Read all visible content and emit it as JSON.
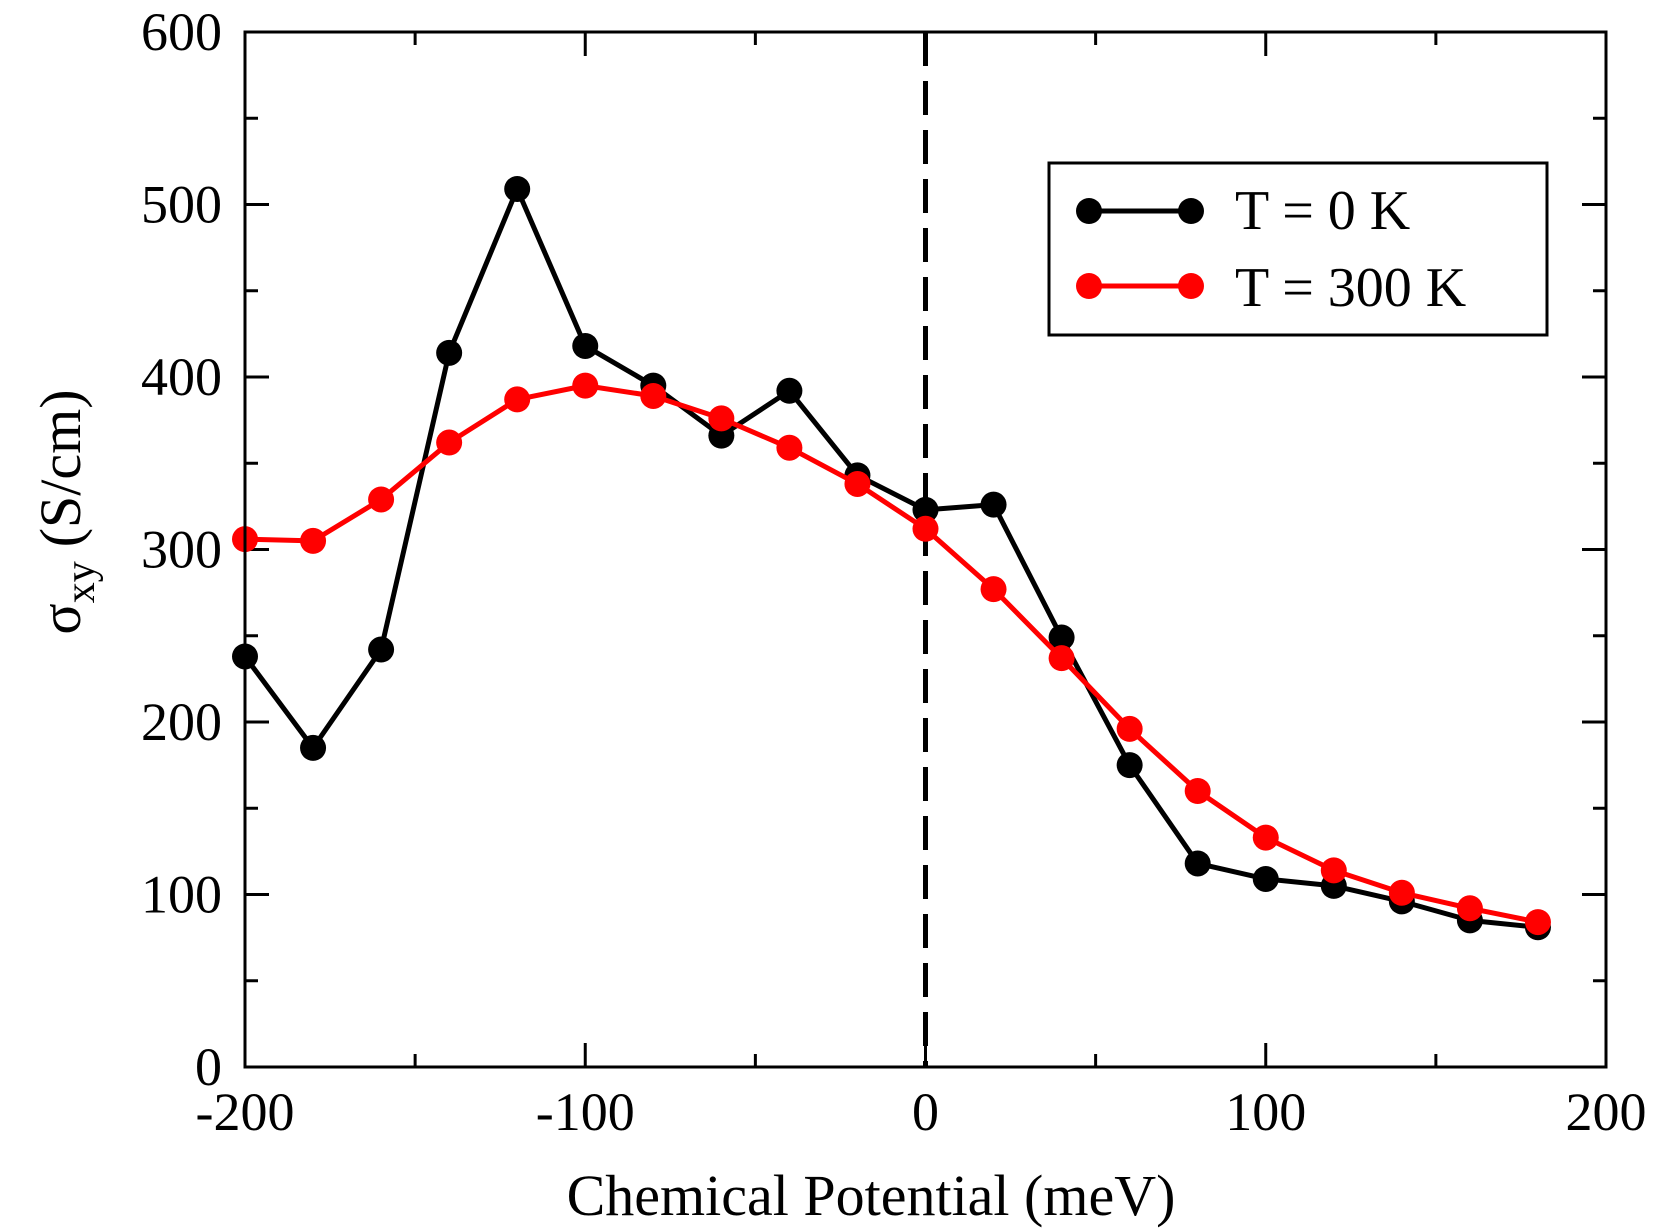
{
  "chart_data": {
    "type": "line",
    "title": "",
    "xlabel": "Chemical Potential (meV)",
    "ylabel_symbol": "σ",
    "ylabel_subscript": "xy",
    "ylabel_unit": "(S/cm)",
    "xlim": [
      -200,
      200
    ],
    "ylim": [
      0,
      600
    ],
    "x_ticks": [
      -200,
      -100,
      0,
      100,
      200
    ],
    "x_tick_labels": [
      "-200",
      "-100",
      "0",
      "100",
      "200"
    ],
    "y_ticks": [
      0,
      100,
      200,
      300,
      400,
      500,
      600
    ],
    "y_tick_labels": [
      "0",
      "100",
      "200",
      "300",
      "400",
      "500",
      "600"
    ],
    "x_minor_step": 50,
    "y_minor_step": 50,
    "grid": false,
    "legend_position": "top-right",
    "reference_line": {
      "x": 0,
      "style": "dashed",
      "color": "#000000"
    },
    "series": [
      {
        "name": "T = 0 K",
        "color": "#000000",
        "x": [
          -200,
          -180,
          -160,
          -140,
          -120,
          -100,
          -80,
          -60,
          -40,
          -20,
          0,
          20,
          40,
          60,
          80,
          100,
          120,
          140,
          160,
          180
        ],
        "values": [
          238,
          185,
          242,
          414,
          509,
          418,
          395,
          366,
          392,
          343,
          323,
          326,
          249,
          175,
          118,
          109,
          105,
          96,
          85,
          81
        ]
      },
      {
        "name": "T = 300 K",
        "color": "#ff0000",
        "x": [
          -200,
          -180,
          -160,
          -140,
          -120,
          -100,
          -80,
          -60,
          -40,
          -20,
          0,
          20,
          40,
          60,
          80,
          100,
          120,
          140,
          160,
          180
        ],
        "values": [
          306,
          305,
          329,
          362,
          387,
          395,
          389,
          376,
          359,
          338,
          312,
          277,
          237,
          196,
          160,
          133,
          114,
          101,
          92,
          84
        ]
      }
    ]
  }
}
